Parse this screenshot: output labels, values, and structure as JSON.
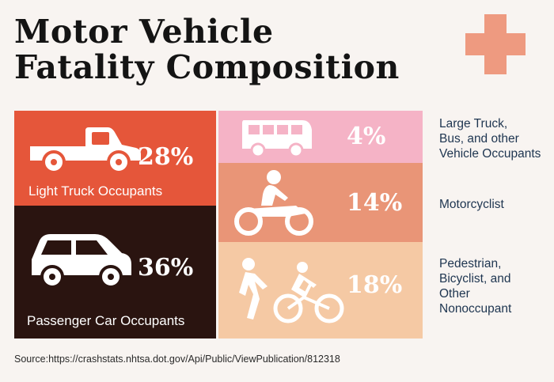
{
  "title": {
    "line1": "Motor Vehicle",
    "line2": "Fatality Composition"
  },
  "source": "Source:https://crashstats.nhtsa.dot.gov/Api/Public/ViewPublication/812318",
  "colors": {
    "light_truck": "#e5563a",
    "passenger_car": "#2a1410",
    "large_truck_bus": "#f5b3c6",
    "motorcyclist": "#e99577",
    "pedestrian": "#f5c9a4",
    "accent_plus": "#ee9a80"
  },
  "chart_data": {
    "type": "table",
    "title": "Motor Vehicle Fatality Composition",
    "categories": [
      {
        "label": "Light Truck Occupants",
        "value": 28,
        "display": "28%",
        "icon": "pickup-truck-icon"
      },
      {
        "label": "Passenger Car Occupants",
        "value": 36,
        "display": "36%",
        "icon": "car-icon"
      },
      {
        "label": "Large Truck, Bus, and other Vehicle Occupants",
        "label_lines": [
          "Large Truck,",
          "Bus, and other",
          "Vehicle Occupants"
        ],
        "value": 4,
        "display": "4%",
        "icon": "bus-icon"
      },
      {
        "label": "Motorcyclist",
        "label_lines": [
          "Motorcyclist"
        ],
        "value": 14,
        "display": "14%",
        "icon": "motorcycle-icon"
      },
      {
        "label": "Pedestrian, Bicyclist, and Other Nonoccupant",
        "label_lines": [
          "Pedestrian,",
          "Bicyclist, and",
          "Other",
          "Nonoccupant"
        ],
        "value": 18,
        "display": "18%",
        "icon": "pedestrian-bicycle-icon"
      }
    ]
  }
}
